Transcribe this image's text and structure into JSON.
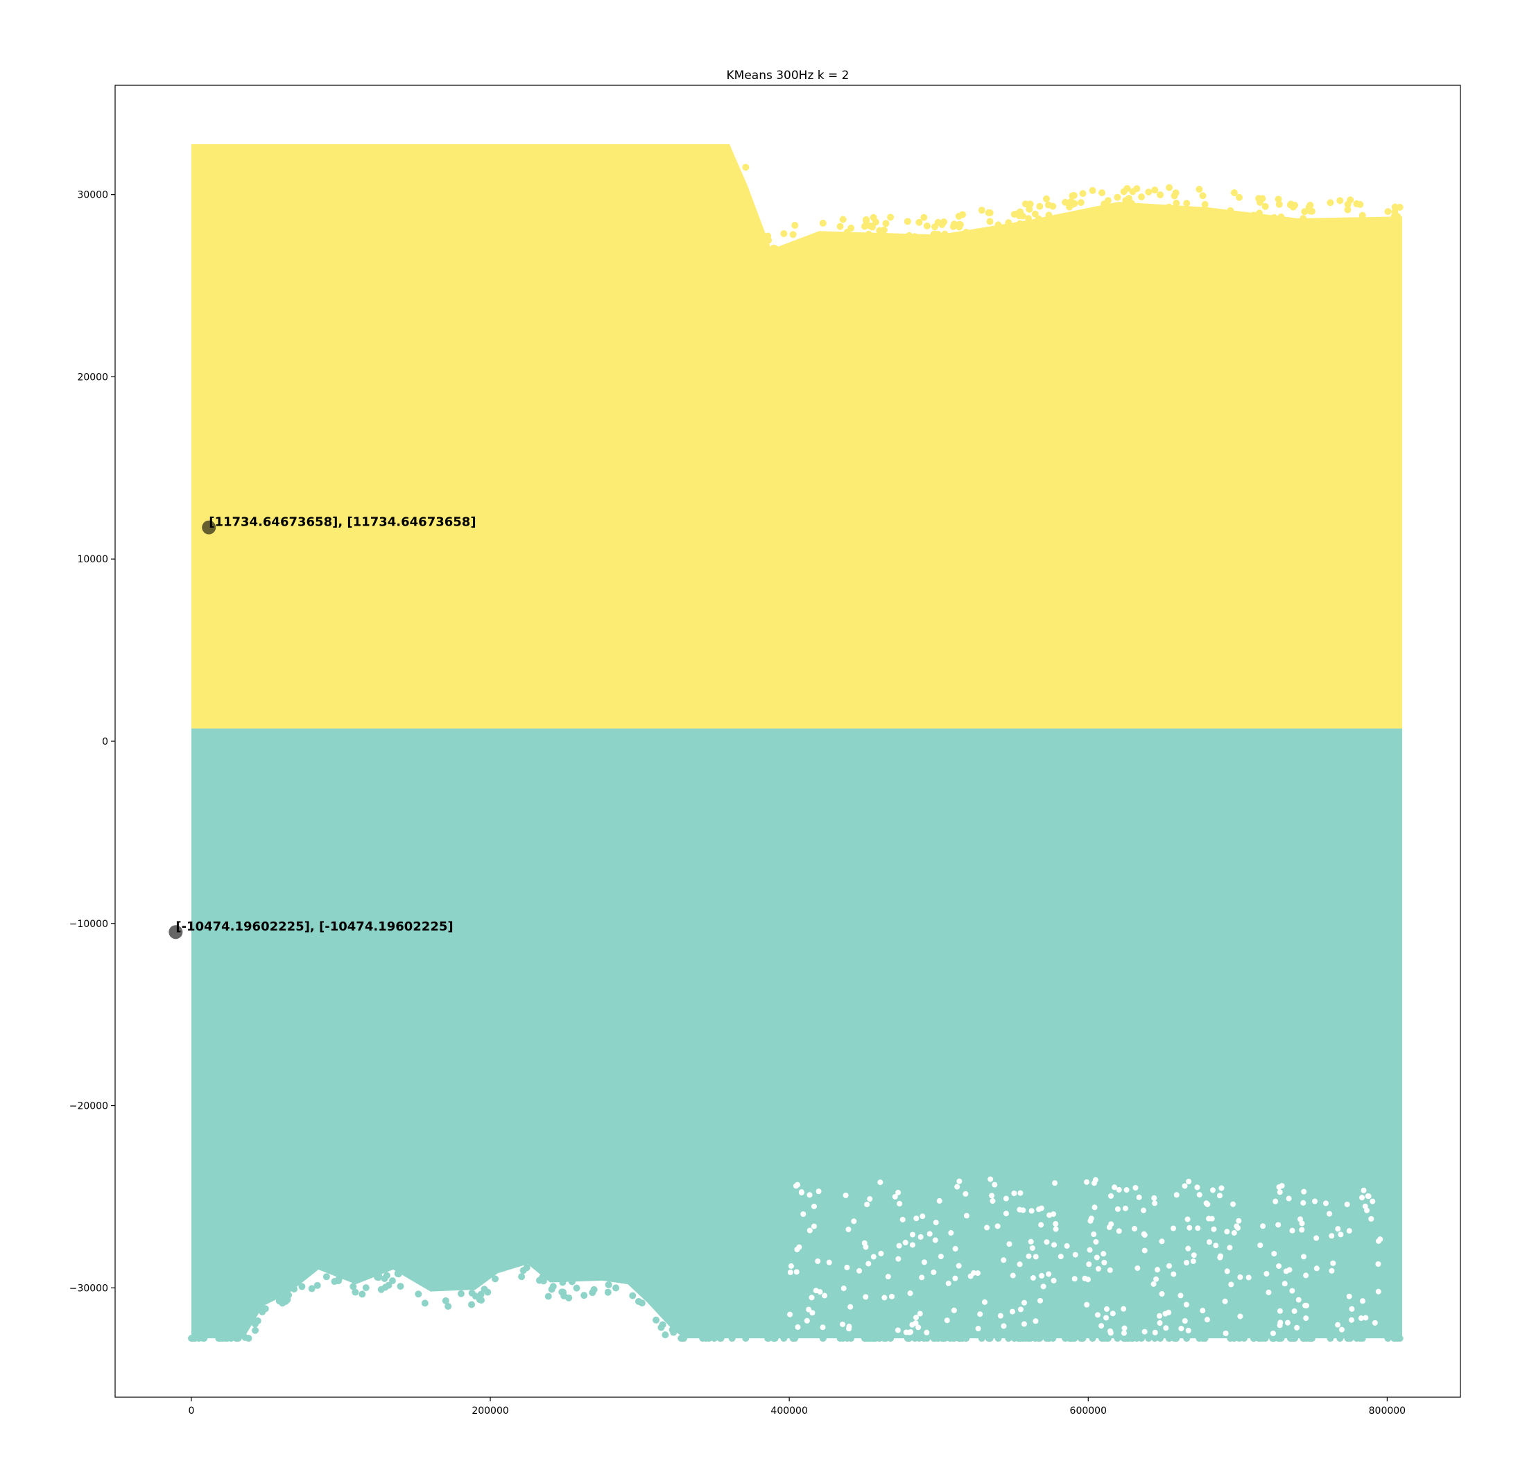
{
  "chart_data": {
    "type": "scatter",
    "title": "KMeans 300Hz k = 2",
    "xlabel": "",
    "ylabel": "",
    "xlim": [
      -51000,
      849000
    ],
    "ylim": [
      -36000,
      36000
    ],
    "xticks": [
      0,
      200000,
      400000,
      600000,
      800000
    ],
    "xtick_labels": [
      "0",
      "200000",
      "400000",
      "600000",
      "800000"
    ],
    "yticks": [
      30000,
      20000,
      10000,
      0,
      -10000,
      -20000,
      -30000
    ],
    "ytick_labels": [
      "30000",
      "20000",
      "10000",
      "0",
      "−10000",
      "−20000",
      "−30000"
    ],
    "grid": false,
    "legend": "none",
    "x_extent": [
      0,
      810000
    ],
    "clusters": [
      {
        "label": 1,
        "color": "#fdec73",
        "y_range": [
          700,
          32767
        ],
        "x_range": [
          0,
          810000
        ]
      },
      {
        "label": 0,
        "color": "#8ed3c7",
        "y_range": [
          -32768,
          700
        ],
        "x_range": [
          0,
          810000
        ]
      }
    ],
    "envelope_top": [
      [
        0,
        32767
      ],
      [
        360000,
        32767
      ],
      [
        372000,
        30500
      ],
      [
        388000,
        27000
      ],
      [
        420000,
        28000
      ],
      [
        500000,
        27800
      ],
      [
        560000,
        28600
      ],
      [
        620000,
        29600
      ],
      [
        680000,
        29300
      ],
      [
        740000,
        28700
      ],
      [
        810000,
        28800
      ]
    ],
    "envelope_bottom": [
      [
        0,
        -32768
      ],
      [
        35000,
        -32768
      ],
      [
        48000,
        -31000
      ],
      [
        65000,
        -30300
      ],
      [
        85000,
        -29000
      ],
      [
        110000,
        -29800
      ],
      [
        135000,
        -29000
      ],
      [
        160000,
        -30200
      ],
      [
        190000,
        -30100
      ],
      [
        205000,
        -29200
      ],
      [
        225000,
        -28700
      ],
      [
        240000,
        -29700
      ],
      [
        275000,
        -29600
      ],
      [
        292000,
        -29800
      ],
      [
        305000,
        -30800
      ],
      [
        322000,
        -32300
      ],
      [
        330000,
        -32768
      ],
      [
        810000,
        -32768
      ]
    ],
    "centroids": [
      {
        "x": 11734.64673658,
        "y": 11734.64673658,
        "label": "[11734.64673658], [11734.64673658]"
      },
      {
        "x": -10474.19602225,
        "y": -10474.19602225,
        "label": "[-10474.19602225], [-10474.19602225]"
      }
    ]
  }
}
